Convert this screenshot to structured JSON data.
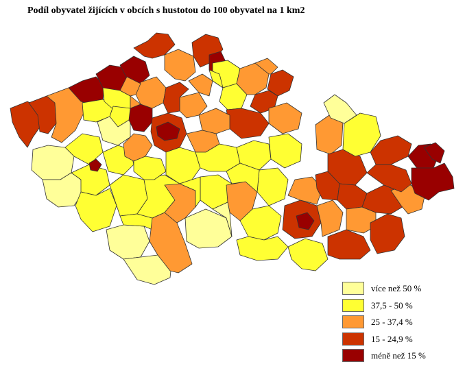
{
  "title": "Podíl obyvatel žijících v obcích s hustotou do 100 obyvatel na 1 km2",
  "colors": {
    "c1": "#ffff99",
    "c2": "#ffff33",
    "c3": "#ff9933",
    "c4": "#cc3300",
    "c5": "#990000",
    "border": "#333333"
  },
  "legend": [
    {
      "label": "více než 50 %",
      "color_key": "c1"
    },
    {
      "label": "37,5 - 50 %",
      "color_key": "c2"
    },
    {
      "label": "25 - 37,4 %",
      "color_key": "c3"
    },
    {
      "label": "15 - 24,9 %",
      "color_key": "c4"
    },
    {
      "label": "méně než 15 %",
      "color_key": "c5"
    }
  ]
}
